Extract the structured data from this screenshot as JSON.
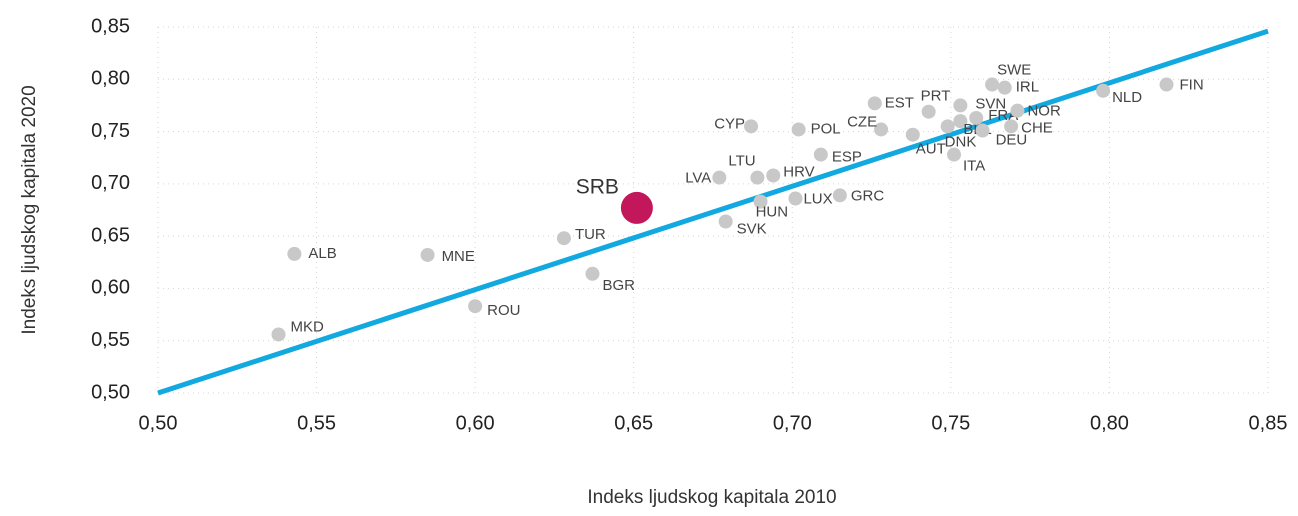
{
  "chart_data": {
    "type": "scatter",
    "x_label": "Indeks ljudskog kapitala 2010",
    "y_label": "Indeks ljudskog kapitala 2020",
    "labels": [
      "MKD",
      "ALB",
      "MNE",
      "ROU",
      "TUR",
      "BGR",
      "SRB",
      "SVK",
      "LVA",
      "LTU",
      "HRV",
      "HUN",
      "LUX",
      "GRC",
      "ESP",
      "CYP",
      "POL",
      "CZE",
      "EST",
      "PRT",
      "AUT",
      "ITA",
      "SVN",
      "DNK",
      "BEL",
      "FRA",
      "DEU",
      "NOR",
      "CHE",
      "SWE",
      "IRL",
      "NLD",
      "FIN"
    ],
    "x": [
      0.538,
      0.543,
      0.585,
      0.6,
      0.628,
      0.637,
      0.651,
      0.679,
      0.677,
      0.689,
      0.694,
      0.69,
      0.701,
      0.715,
      0.709,
      0.687,
      0.702,
      0.728,
      0.726,
      0.743,
      0.738,
      0.751,
      0.753,
      0.749,
      0.753,
      0.758,
      0.76,
      0.771,
      0.769,
      0.763,
      0.767,
      0.798,
      0.818
    ],
    "y": [
      0.556,
      0.633,
      0.632,
      0.583,
      0.648,
      0.614,
      0.677,
      0.664,
      0.706,
      0.706,
      0.708,
      0.683,
      0.686,
      0.689,
      0.728,
      0.755,
      0.752,
      0.752,
      0.777,
      0.769,
      0.747,
      0.728,
      0.775,
      0.755,
      0.76,
      0.763,
      0.751,
      0.77,
      0.755,
      0.795,
      0.792,
      0.789,
      0.795
    ],
    "colors": [
      "#c8c8c8",
      "#c8c8c8",
      "#c8c8c8",
      "#c8c8c8",
      "#c8c8c8",
      "#c8c8c8",
      "#c2185b",
      "#c8c8c8",
      "#c8c8c8",
      "#c8c8c8",
      "#c8c8c8",
      "#c8c8c8",
      "#c8c8c8",
      "#c8c8c8",
      "#c8c8c8",
      "#c8c8c8",
      "#c8c8c8",
      "#c8c8c8",
      "#c8c8c8",
      "#c8c8c8",
      "#c8c8c8",
      "#c8c8c8",
      "#c8c8c8",
      "#c8c8c8",
      "#c8c8c8",
      "#c8c8c8",
      "#c8c8c8",
      "#c8c8c8",
      "#c8c8c8",
      "#c8c8c8",
      "#c8c8c8",
      "#c8c8c8",
      "#c8c8c8"
    ],
    "trend_line": {
      "x": [
        0.5,
        0.85
      ],
      "y": [
        0.5,
        0.846
      ],
      "color": "#12a8e0"
    },
    "xlim": [
      0.5,
      0.85
    ],
    "ylim": [
      0.5,
      0.85
    ],
    "xticks": [
      {
        "value": 0.5,
        "label": "0,50"
      },
      {
        "value": 0.55,
        "label": "0,55"
      },
      {
        "value": 0.6,
        "label": "0,60"
      },
      {
        "value": 0.65,
        "label": "0,65"
      },
      {
        "value": 0.7,
        "label": "0,70"
      },
      {
        "value": 0.75,
        "label": "0,75"
      },
      {
        "value": 0.8,
        "label": "0,80"
      },
      {
        "value": 0.85,
        "label": "0,85"
      }
    ],
    "yticks": [
      {
        "value": 0.5,
        "label": "0,50"
      },
      {
        "value": 0.55,
        "label": "0,55"
      },
      {
        "value": 0.6,
        "label": "0,60"
      },
      {
        "value": 0.65,
        "label": "0,65"
      },
      {
        "value": 0.7,
        "label": "0,70"
      },
      {
        "value": 0.75,
        "label": "0,75"
      },
      {
        "value": 0.8,
        "label": "0,80"
      },
      {
        "value": 0.85,
        "label": "0,85"
      }
    ],
    "grid": true
  }
}
